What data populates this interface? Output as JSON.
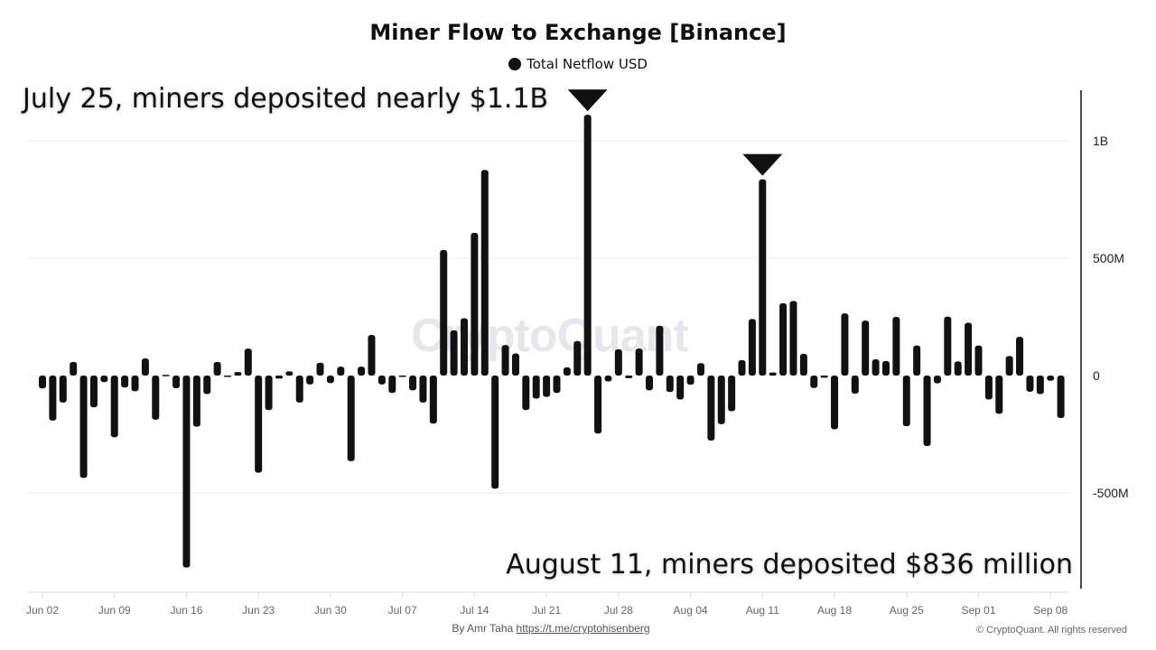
{
  "title": "Miner Flow to Exchange [Binance]",
  "legend": "Total Netflow USD",
  "watermark": "CryptoQuant",
  "annotations": {
    "july": "July 25, miners deposited nearly $1.1B",
    "august": "August 11, miners deposited $836 million"
  },
  "footer": {
    "by": "By Amr Taha",
    "link": "https://t.me/cryptohisenberg",
    "copyright": "© CryptoQuant. All rights reserved"
  },
  "colors": {
    "bar": "#111111",
    "grid": "#eeeeee",
    "watermark": "#e6e6ec"
  },
  "chart_data": {
    "type": "bar",
    "title": "Miner Flow to Exchange [Binance]",
    "legend": [
      "Total Netflow USD"
    ],
    "legend_position": "top",
    "unit": "USD (millions)",
    "ylim": [
      -900,
      1250
    ],
    "y_ticks": [
      {
        "value": 1000,
        "label": "1B"
      },
      {
        "value": 500,
        "label": "500M"
      },
      {
        "value": 0,
        "label": "0"
      },
      {
        "value": -500,
        "label": "-500M"
      }
    ],
    "y_axis_side": "right",
    "grid": true,
    "x_ticks": [
      "Jun 02",
      "Jun 09",
      "Jun 16",
      "Jun 23",
      "Jun 30",
      "Jul 07",
      "Jul 14",
      "Jul 21",
      "Jul 28",
      "Aug 04",
      "Aug 11",
      "Aug 18",
      "Aug 25",
      "Sep 01",
      "Sep 08"
    ],
    "markers": [
      "Jul 25",
      "Aug 11"
    ],
    "categories": [
      "Jun 02",
      "Jun 03",
      "Jun 04",
      "Jun 05",
      "Jun 06",
      "Jun 07",
      "Jun 08",
      "Jun 09",
      "Jun 10",
      "Jun 11",
      "Jun 12",
      "Jun 13",
      "Jun 14",
      "Jun 15",
      "Jun 16",
      "Jun 17",
      "Jun 18",
      "Jun 19",
      "Jun 20",
      "Jun 21",
      "Jun 22",
      "Jun 23",
      "Jun 24",
      "Jun 25",
      "Jun 26",
      "Jun 27",
      "Jun 28",
      "Jun 29",
      "Jun 30",
      "Jul 01",
      "Jul 02",
      "Jul 03",
      "Jul 04",
      "Jul 05",
      "Jul 06",
      "Jul 07",
      "Jul 08",
      "Jul 09",
      "Jul 10",
      "Jul 11",
      "Jul 12",
      "Jul 13",
      "Jul 14",
      "Jul 15",
      "Jul 16",
      "Jul 17",
      "Jul 18",
      "Jul 19",
      "Jul 20",
      "Jul 21",
      "Jul 22",
      "Jul 23",
      "Jul 24",
      "Jul 25",
      "Jul 26",
      "Jul 27",
      "Jul 28",
      "Jul 29",
      "Jul 30",
      "Jul 31",
      "Aug 01",
      "Aug 02",
      "Aug 03",
      "Aug 04",
      "Aug 05",
      "Aug 06",
      "Aug 07",
      "Aug 08",
      "Aug 09",
      "Aug 10",
      "Aug 11",
      "Aug 12",
      "Aug 13",
      "Aug 14",
      "Aug 15",
      "Aug 16",
      "Aug 17",
      "Aug 18",
      "Aug 19",
      "Aug 20",
      "Aug 21",
      "Aug 22",
      "Aug 23",
      "Aug 24",
      "Aug 25",
      "Aug 26",
      "Aug 27",
      "Aug 28",
      "Aug 29",
      "Aug 30",
      "Aug 31",
      "Sep 01",
      "Sep 02",
      "Sep 03",
      "Sep 04",
      "Sep 05",
      "Sep 06",
      "Sep 07",
      "Sep 08",
      "Sep 09"
    ],
    "values": [
      -55,
      -192,
      -115,
      58,
      -436,
      -135,
      -28,
      -263,
      -51,
      -67,
      73,
      -188,
      3,
      -54,
      -818,
      -218,
      -79,
      58,
      -4,
      15,
      115,
      -414,
      -147,
      -13,
      18,
      -115,
      -38,
      55,
      -32,
      38,
      -365,
      38,
      173,
      -38,
      -74,
      0,
      -63,
      -115,
      -205,
      535,
      193,
      244,
      608,
      876,
      -482,
      130,
      94,
      -147,
      -98,
      -91,
      -74,
      35,
      147,
      1111,
      -247,
      -25,
      112,
      -11,
      115,
      -63,
      212,
      -70,
      -102,
      -39,
      53,
      -277,
      -207,
      -152,
      66,
      241,
      836,
      13,
      308,
      318,
      93,
      -53,
      -9,
      -229,
      265,
      -77,
      234,
      69,
      62,
      250,
      -216,
      128,
      -300,
      -33,
      251,
      60,
      225,
      128,
      -102,
      -163,
      83,
      165,
      -69,
      -79,
      -22,
      -181
    ]
  }
}
